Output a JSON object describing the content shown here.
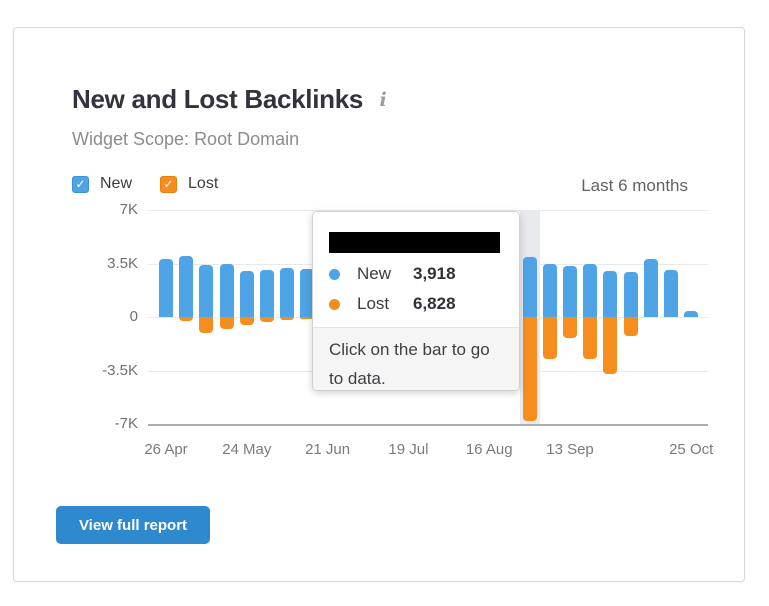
{
  "card": {
    "title": "New and Lost Backlinks",
    "info_icon": "i",
    "subtitle": "Widget Scope: Root Domain",
    "period_label": "Last 6 months",
    "button_label": "View full report"
  },
  "legend": [
    {
      "label": "New",
      "checked": true,
      "checkmark": "✓",
      "color": "#4fa4e6"
    },
    {
      "label": "Lost",
      "checked": true,
      "checkmark": "✓",
      "color": "#f68d1f"
    }
  ],
  "tooltip": {
    "title_redacted": true,
    "rows": [
      {
        "label": "New",
        "value": "3,918",
        "color": "#4fa4e6"
      },
      {
        "label": "Lost",
        "value": "6,828",
        "color": "#f68d1f"
      }
    ],
    "footer_line1": "Click on the bar to go",
    "footer_line2": "to data."
  },
  "colors": {
    "new_bar": "#4fa4e6",
    "lost_bar": "#f68d1f",
    "highlight_band": "#e8eaee",
    "button": "#2f89cf"
  },
  "chart_data": {
    "type": "bar",
    "title": "New and Lost Backlinks",
    "period": "Last 6 months",
    "ylim": [
      -7000,
      7000
    ],
    "y_tick_labels": [
      "7K",
      "3.5K",
      "0",
      "-3.5K",
      "-7K"
    ],
    "x_tick_labels": [
      {
        "label": "26 Apr",
        "bar_index": 0
      },
      {
        "label": "24 May",
        "bar_index": 4
      },
      {
        "label": "21 Jun",
        "bar_index": 8
      },
      {
        "label": "19 Jul",
        "bar_index": 12
      },
      {
        "label": "16 Aug",
        "bar_index": 16
      },
      {
        "label": "13 Sep",
        "bar_index": 20
      },
      {
        "label": "25 Oct",
        "bar_index": 26
      }
    ],
    "grid": true,
    "legend_position": "top-left",
    "highlighted_bar_index": 18,
    "hidden_note": "bars 8-17 are covered by the open tooltip; values not visible",
    "series": [
      {
        "name": "New",
        "color": "#4fa4e6",
        "values": [
          3780,
          4020,
          3380,
          3500,
          2980,
          3080,
          3220,
          3150,
          null,
          null,
          null,
          null,
          null,
          null,
          null,
          null,
          null,
          null,
          3918,
          3500,
          3360,
          3500,
          2980,
          2930,
          3800,
          3060,
          420
        ]
      },
      {
        "name": "Lost",
        "color": "#f68d1f",
        "values": [
          0,
          -260,
          -1050,
          -800,
          -550,
          -350,
          -180,
          -120,
          null,
          null,
          null,
          null,
          null,
          null,
          null,
          null,
          null,
          null,
          -6828,
          -2720,
          -1360,
          -2750,
          -3720,
          -1250,
          0,
          0,
          0
        ]
      }
    ]
  }
}
